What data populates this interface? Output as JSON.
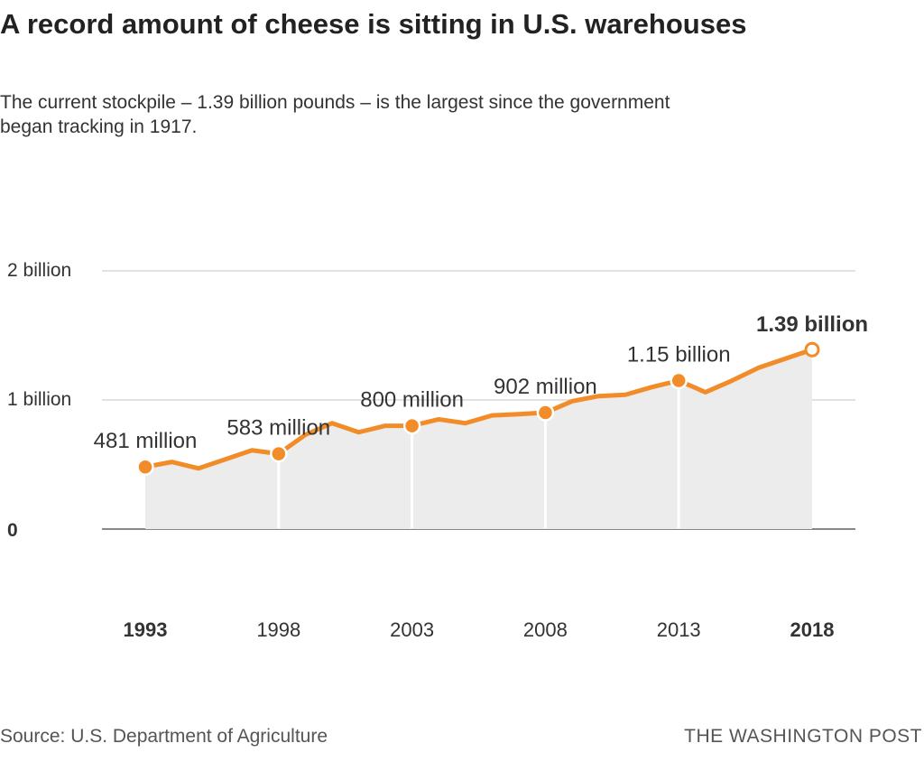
{
  "title": "A record amount of cheese is sitting in U.S. warehouses",
  "subtitle": "The current stockpile – 1.39 billion pounds – is the largest since the government began tracking in 1917.",
  "source": "Source: U.S. Department of Agriculture",
  "credit": "THE WASHINGTON POST",
  "colors": {
    "line": "#f28c28",
    "area": "#ececec",
    "grid": "#d8d8d8",
    "axis": "#888888"
  },
  "chart_data": {
    "type": "area",
    "title": "A record amount of cheese is sitting in U.S. warehouses",
    "xlabel": "",
    "ylabel": "",
    "xlim": [
      1993,
      2018
    ],
    "ylim": [
      0,
      2
    ],
    "grid": true,
    "y_ticks": [
      {
        "value": 0,
        "label": "0"
      },
      {
        "value": 1,
        "label": "1 billion"
      },
      {
        "value": 2,
        "label": "2 billion"
      }
    ],
    "x_ticks": [
      {
        "value": 1993,
        "label": "1993",
        "bold": true
      },
      {
        "value": 1998,
        "label": "1998"
      },
      {
        "value": 2003,
        "label": "2003"
      },
      {
        "value": 2008,
        "label": "2008"
      },
      {
        "value": 2013,
        "label": "2013"
      },
      {
        "value": 2018,
        "label": "2018",
        "bold": true
      }
    ],
    "x": [
      1993,
      1994,
      1995,
      1996,
      1997,
      1998,
      1999,
      2000,
      2001,
      2002,
      2003,
      2004,
      2005,
      2006,
      2007,
      2008,
      2009,
      2010,
      2011,
      2012,
      2013,
      2014,
      2015,
      2016,
      2017,
      2018
    ],
    "values": [
      0.481,
      0.52,
      0.47,
      0.54,
      0.61,
      0.583,
      0.73,
      0.82,
      0.75,
      0.8,
      0.8,
      0.85,
      0.82,
      0.88,
      0.89,
      0.902,
      0.99,
      1.03,
      1.04,
      1.1,
      1.15,
      1.06,
      1.15,
      1.25,
      1.32,
      1.39
    ],
    "unit": "billion pounds",
    "annotations": [
      {
        "x": 1993,
        "value": 0.481,
        "label": "481 million"
      },
      {
        "x": 1998,
        "value": 0.583,
        "label": "583 million"
      },
      {
        "x": 2003,
        "value": 0.8,
        "label": "800 million"
      },
      {
        "x": 2008,
        "value": 0.902,
        "label": "902 million"
      },
      {
        "x": 2013,
        "value": 1.15,
        "label": "1.15 billion"
      },
      {
        "x": 2018,
        "value": 1.39,
        "label": "1.39 billion",
        "bold": true,
        "open": true
      }
    ]
  }
}
